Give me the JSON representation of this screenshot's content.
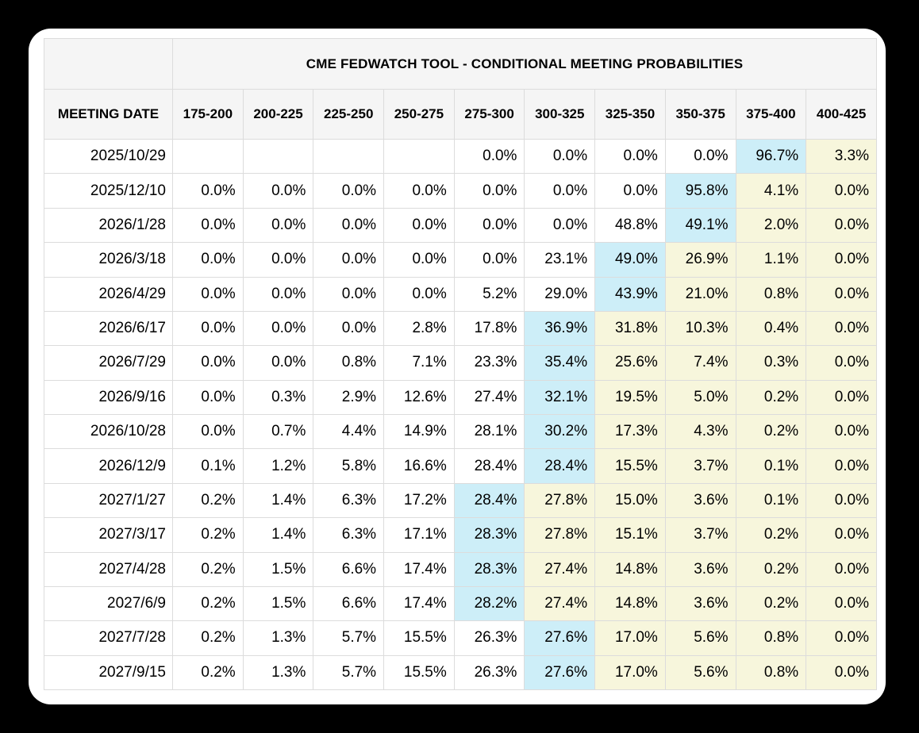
{
  "chart_data": {
    "type": "table",
    "title": "CME FEDWATCH TOOL - CONDITIONAL MEETING PROBABILITIES",
    "columns": [
      "MEETING DATE",
      "175-200",
      "200-225",
      "225-250",
      "250-275",
      "275-300",
      "300-325",
      "325-350",
      "350-375",
      "375-400",
      "400-425"
    ],
    "rows": [
      {
        "date": "2025/10/29",
        "values": [
          "",
          "",
          "",
          "",
          "0.0%",
          "0.0%",
          "0.0%",
          "0.0%",
          "96.7%",
          "3.3%"
        ],
        "max_col": 8
      },
      {
        "date": "2025/12/10",
        "values": [
          "0.0%",
          "0.0%",
          "0.0%",
          "0.0%",
          "0.0%",
          "0.0%",
          "0.0%",
          "95.8%",
          "4.1%",
          "0.0%"
        ],
        "max_col": 7
      },
      {
        "date": "2026/1/28",
        "values": [
          "0.0%",
          "0.0%",
          "0.0%",
          "0.0%",
          "0.0%",
          "0.0%",
          "48.8%",
          "49.1%",
          "2.0%",
          "0.0%"
        ],
        "max_col": 7
      },
      {
        "date": "2026/3/18",
        "values": [
          "0.0%",
          "0.0%",
          "0.0%",
          "0.0%",
          "0.0%",
          "23.1%",
          "49.0%",
          "26.9%",
          "1.1%",
          "0.0%"
        ],
        "max_col": 6
      },
      {
        "date": "2026/4/29",
        "values": [
          "0.0%",
          "0.0%",
          "0.0%",
          "0.0%",
          "5.2%",
          "29.0%",
          "43.9%",
          "21.0%",
          "0.8%",
          "0.0%"
        ],
        "max_col": 6
      },
      {
        "date": "2026/6/17",
        "values": [
          "0.0%",
          "0.0%",
          "0.0%",
          "2.8%",
          "17.8%",
          "36.9%",
          "31.8%",
          "10.3%",
          "0.4%",
          "0.0%"
        ],
        "max_col": 5
      },
      {
        "date": "2026/7/29",
        "values": [
          "0.0%",
          "0.0%",
          "0.8%",
          "7.1%",
          "23.3%",
          "35.4%",
          "25.6%",
          "7.4%",
          "0.3%",
          "0.0%"
        ],
        "max_col": 5
      },
      {
        "date": "2026/9/16",
        "values": [
          "0.0%",
          "0.3%",
          "2.9%",
          "12.6%",
          "27.4%",
          "32.1%",
          "19.5%",
          "5.0%",
          "0.2%",
          "0.0%"
        ],
        "max_col": 5
      },
      {
        "date": "2026/10/28",
        "values": [
          "0.0%",
          "0.7%",
          "4.4%",
          "14.9%",
          "28.1%",
          "30.2%",
          "17.3%",
          "4.3%",
          "0.2%",
          "0.0%"
        ],
        "max_col": 5
      },
      {
        "date": "2026/12/9",
        "values": [
          "0.1%",
          "1.2%",
          "5.8%",
          "16.6%",
          "28.4%",
          "28.4%",
          "15.5%",
          "3.7%",
          "0.1%",
          "0.0%"
        ],
        "max_col": 5
      },
      {
        "date": "2027/1/27",
        "values": [
          "0.2%",
          "1.4%",
          "6.3%",
          "17.2%",
          "28.4%",
          "27.8%",
          "15.0%",
          "3.6%",
          "0.1%",
          "0.0%"
        ],
        "max_col": 4
      },
      {
        "date": "2027/3/17",
        "values": [
          "0.2%",
          "1.4%",
          "6.3%",
          "17.1%",
          "28.3%",
          "27.8%",
          "15.1%",
          "3.7%",
          "0.2%",
          "0.0%"
        ],
        "max_col": 4
      },
      {
        "date": "2027/4/28",
        "values": [
          "0.2%",
          "1.5%",
          "6.6%",
          "17.4%",
          "28.3%",
          "27.4%",
          "14.8%",
          "3.6%",
          "0.2%",
          "0.0%"
        ],
        "max_col": 4
      },
      {
        "date": "2027/6/9",
        "values": [
          "0.2%",
          "1.5%",
          "6.6%",
          "17.4%",
          "28.2%",
          "27.4%",
          "14.8%",
          "3.6%",
          "0.2%",
          "0.0%"
        ],
        "max_col": 4
      },
      {
        "date": "2027/7/28",
        "values": [
          "0.2%",
          "1.3%",
          "5.7%",
          "15.5%",
          "26.3%",
          "27.6%",
          "17.0%",
          "5.6%",
          "0.8%",
          "0.0%"
        ],
        "max_col": 5
      },
      {
        "date": "2027/9/15",
        "values": [
          "0.2%",
          "1.3%",
          "5.7%",
          "15.5%",
          "26.3%",
          "27.6%",
          "17.0%",
          "5.6%",
          "0.8%",
          "0.0%"
        ],
        "max_col": 5
      }
    ],
    "colors": {
      "max_highlight": "#cdeef8",
      "right_of_max_highlight": "#f7f6dc",
      "header_background": "#f5f5f5",
      "border": "#dcdcdc",
      "card_background": "#ffffff",
      "page_background": "#000000"
    },
    "legend_position": "none",
    "grid": true
  }
}
